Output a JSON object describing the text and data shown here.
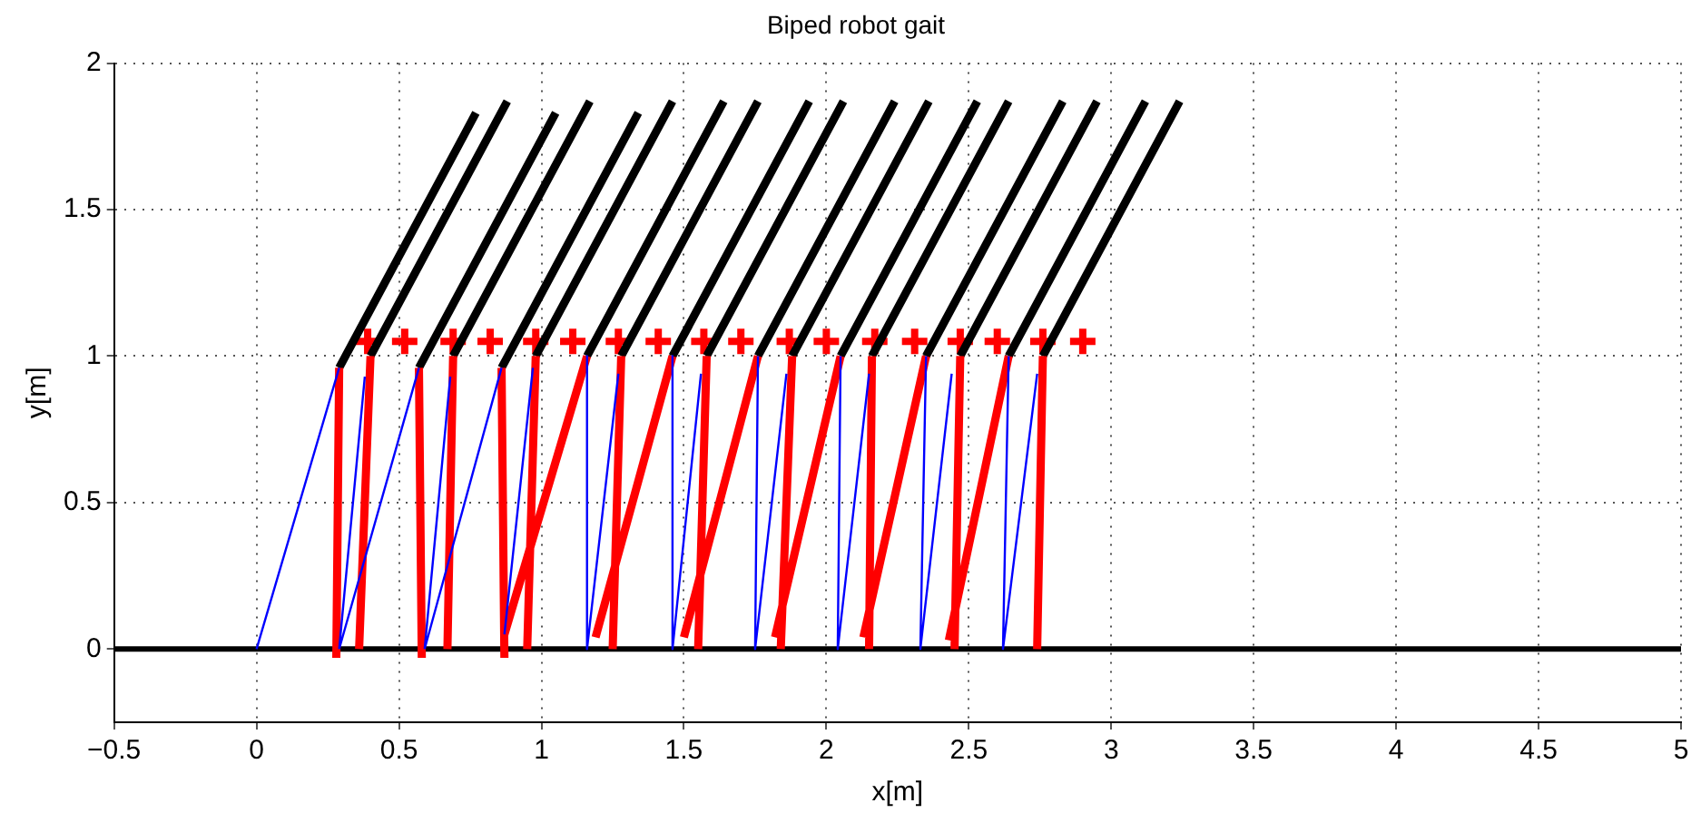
{
  "chart_data": {
    "type": "line",
    "title": "Biped robot gait",
    "xlabel": "x[m]",
    "ylabel": "y[m]",
    "xlim": [
      -0.5,
      5
    ],
    "xticks": [
      -0.5,
      0,
      0.5,
      1,
      1.5,
      2,
      2.5,
      3,
      3.5,
      4,
      4.5,
      5
    ],
    "ylim": [
      -0.25,
      2
    ],
    "yticks": [
      0,
      0.5,
      1,
      1.5,
      2
    ],
    "grid": true,
    "legend": false,
    "line_style": "solid",
    "series": [
      {
        "type": "line",
        "color": "#0000ff",
        "x": [
          0,
          0.29,
          null,
          0.29,
          0.38,
          null,
          0.29,
          0.57,
          null,
          0.59,
          0.68,
          null,
          0.59,
          0.86,
          null,
          0.87,
          0.97,
          null,
          1.16,
          1.16,
          1.27,
          null,
          1.46,
          1.46,
          1.56,
          null,
          1.76,
          1.75,
          1.86,
          null,
          2.05,
          2.04,
          2.15,
          null,
          2.35,
          2.33,
          2.44,
          null,
          2.64,
          2.62,
          2.74
        ],
        "values": [
          0,
          0.96,
          null,
          0,
          0.93,
          null,
          0,
          0.96,
          null,
          0,
          0.93,
          null,
          0,
          0.96,
          null,
          0.05,
          0.96,
          null,
          1.0,
          0,
          0.94,
          null,
          1.0,
          0,
          0.94,
          null,
          1.0,
          0,
          0.94,
          null,
          1.0,
          0,
          0.94,
          null,
          1.0,
          0,
          0.94,
          null,
          1.0,
          0,
          0.94
        ]
      },
      {
        "type": "line",
        "color": "#ff0000",
        "x": [
          0.29,
          0.28,
          null,
          0.4,
          0.36,
          null,
          0.57,
          0.58,
          null,
          0.69,
          0.67,
          null,
          0.86,
          0.87,
          null,
          0.98,
          0.95,
          null,
          1.16,
          0.87,
          null,
          1.28,
          1.25,
          null,
          1.46,
          1.19,
          null,
          1.58,
          1.55,
          null,
          1.76,
          1.5,
          null,
          1.88,
          1.84,
          null,
          2.05,
          1.82,
          null,
          2.16,
          2.15,
          null,
          2.35,
          2.13,
          null,
          2.47,
          2.45,
          null,
          2.64,
          2.43,
          null,
          2.76,
          2.74
        ],
        "values": [
          0.96,
          -0.03,
          null,
          1.0,
          0,
          null,
          0.96,
          -0.03,
          null,
          1.0,
          0,
          null,
          0.96,
          -0.03,
          null,
          1.0,
          0,
          null,
          1.0,
          0.05,
          null,
          1.0,
          0,
          null,
          1.0,
          0.04,
          null,
          1.0,
          0,
          null,
          1.0,
          0.04,
          null,
          1.0,
          0,
          null,
          1.0,
          0.04,
          null,
          1.0,
          0,
          null,
          1.0,
          0.04,
          null,
          1.0,
          0,
          null,
          1.0,
          0.03,
          null,
          1.0,
          0
        ]
      },
      {
        "type": "line",
        "color": "#000000",
        "x": [
          0.29,
          0.77,
          null,
          0.4,
          0.88,
          null,
          0.57,
          1.05,
          null,
          0.69,
          1.17,
          null,
          0.86,
          1.34,
          null,
          0.98,
          1.46,
          null,
          1.16,
          1.64,
          null,
          1.28,
          1.76,
          null,
          1.46,
          1.94,
          null,
          1.58,
          2.06,
          null,
          1.76,
          2.24,
          null,
          1.88,
          2.36,
          null,
          2.05,
          2.53,
          null,
          2.16,
          2.64,
          null,
          2.35,
          2.83,
          null,
          2.47,
          2.95,
          null,
          2.64,
          3.12,
          null,
          2.76,
          3.24
        ],
        "values": [
          0.96,
          1.83,
          null,
          1.0,
          1.87,
          null,
          0.96,
          1.83,
          null,
          1.0,
          1.87,
          null,
          0.96,
          1.83,
          null,
          1.0,
          1.87,
          null,
          1.0,
          1.87,
          null,
          1.0,
          1.87,
          null,
          1.0,
          1.87,
          null,
          1.0,
          1.87,
          null,
          1.0,
          1.87,
          null,
          1.0,
          1.87,
          null,
          1.0,
          1.87,
          null,
          1.0,
          1.87,
          null,
          1.0,
          1.87,
          null,
          1.0,
          1.87,
          null,
          1.0,
          1.87,
          null,
          1.0,
          1.87
        ]
      },
      {
        "type": "line",
        "color": "#000000",
        "x": [
          -0.5,
          5
        ],
        "values": [
          0,
          0
        ]
      },
      {
        "type": "scatter",
        "color": "#ff0000",
        "marker": "cross",
        "x": [
          0.39,
          0.52,
          0.69,
          0.82,
          0.98,
          1.11,
          1.27,
          1.41,
          1.57,
          1.7,
          1.87,
          2.0,
          2.17,
          2.31,
          2.47,
          2.6,
          2.76,
          2.9
        ],
        "values": [
          1.05,
          1.05,
          1.05,
          1.05,
          1.05,
          1.05,
          1.05,
          1.05,
          1.05,
          1.05,
          1.05,
          1.05,
          1.05,
          1.05,
          1.05,
          1.05,
          1.05,
          1.05
        ]
      }
    ]
  }
}
